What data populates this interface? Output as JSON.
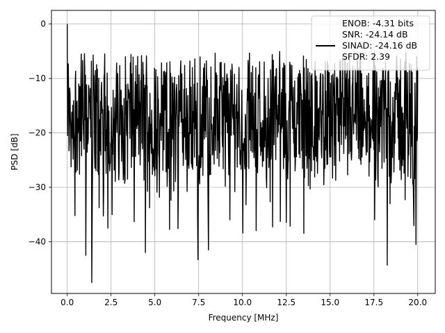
{
  "chart_data": {
    "type": "line",
    "title": "",
    "xlabel": "Frequency [MHz]",
    "ylabel": "PSD [dB]",
    "xlim": [
      -0.9,
      21.0
    ],
    "ylim": [
      -49.5,
      2.5
    ],
    "xticks": [
      0.0,
      2.5,
      5.0,
      7.5,
      10.0,
      12.5,
      15.0,
      17.5,
      20.0
    ],
    "xtick_labels": [
      "0.0",
      "2.5",
      "5.0",
      "7.5",
      "10.0",
      "12.5",
      "15.0",
      "17.5",
      "20.0"
    ],
    "yticks": [
      0,
      -10,
      -20,
      -30,
      -40
    ],
    "ytick_labels": [
      "0",
      "−10",
      "−20",
      "−30",
      "−40"
    ],
    "grid": true,
    "line_color": "#000000",
    "legend": {
      "placement": "upper right",
      "entries": [
        "ENOB: -4.31 bits",
        "SNR: -24.14 dB",
        "SINAD: -24.16 dB",
        "SFDR: 2.39"
      ]
    },
    "series": [
      {
        "x_start": 0.0,
        "x_end": 20.0,
        "x_step": 0.02,
        "peak": {
          "x": 0.0,
          "y": 0.0
        },
        "noise_floor_median": -17,
        "upper_envelope": -8,
        "notable_dips": [
          {
            "x": 1.05,
            "y": -42.5
          },
          {
            "x": 1.4,
            "y": -47.5
          },
          {
            "x": 4.45,
            "y": -42
          },
          {
            "x": 7.45,
            "y": -43.3
          },
          {
            "x": 8.05,
            "y": -41.5
          },
          {
            "x": 18.25,
            "y": -44.3
          },
          {
            "x": 19.9,
            "y": -40.5
          }
        ]
      }
    ]
  }
}
